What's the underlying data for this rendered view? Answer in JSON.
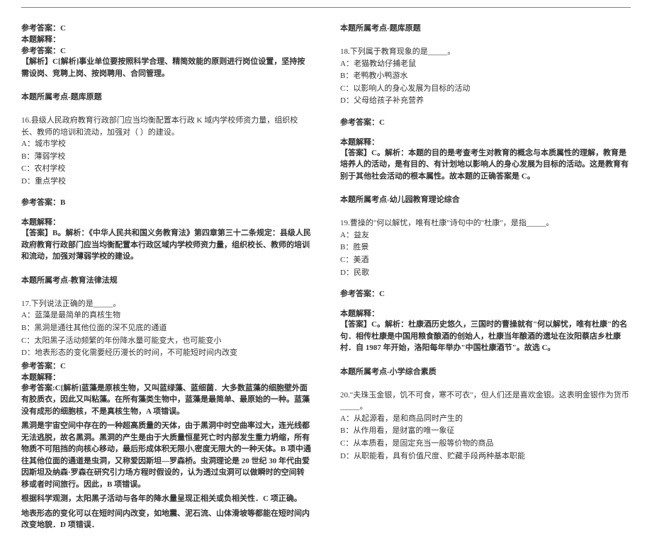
{
  "hr_color": "#808080",
  "left": {
    "ans1_label": "参考答案：C",
    "ans1_explain_label": "本题解释：",
    "ans1_ref": "参考答案：C",
    "ans1_explain": "【解析】C[解析]事业单位要按照科学合理、精简效能的原则进行岗位设置，坚持按需设岗、竞聘上岗、按岗聘用、合同管理。",
    "ans1_topic": "本题所属考点-题库原题",
    "q16_text": "16.县级人民政府教育行政部门应当均衡配置本行政 K 域内学校师资力量，组织校长、教师的培训和流动，加强对（  ）的建设。",
    "q16_a": "A：城市学校",
    "q16_b": "B：薄弱学校",
    "q16_c": "C：农村学校",
    "q16_d": "D：重点学校",
    "q16_ans": "参考答案：B",
    "q16_explain_label": "本题解释：",
    "q16_explain": "【答案】B。解析：《中华人民共和国义务教育法》第四章第三十二条规定：县级人民政府教育行政部门应当均衡配置本行政区域内学校师资力量，组织校长、教师的培训和流动，加强对薄弱学校的建设。",
    "q16_topic": "本题所属考点-教育法律法规",
    "q17_text": "17.下列说法正确的是_____。",
    "q17_a": "A：蓝藻是最简单的真核生物",
    "q17_b": "B：黑洞是通往其他位面的深不见底的通道",
    "q17_c": "C：太阳黑子活动频繁的年份降水量可能变大，也可能变小",
    "q17_d": "D：地表形态的变化需要经历漫长的时间，不可能短时间内改变",
    "q17_ans": "参考答案：C",
    "q17_explain_label": "本题解释：",
    "q17_p1": "参考答案:C[解析]蓝藻是原核生物，又叫蓝绿藻、蓝细菌．大多数蓝藻的细胞壁外面有胶质衣，因此又叫粘藻。在所有藻类生物中，蓝藻是最简单、最原始的一种。蓝藻没有成形的细胞核，不是真核生物，A 项错误。",
    "q17_p2": "黑洞是宇宙空间中存在的一种超高质量的天体，由于黑洞中时空曲率过大，连光线都无法逃脱，故名黑洞。黑洞的产生是由于大质量恒星死亡时内部发生重力坍缩，所有物质不可阻挡的向核心移动，最后形成体积无限小,密度无限大的一种天体。B 项中通往其他位面的通道是虫洞，又称爱因斯坦—罗森桥。虫洞理论是 20 世纪 30 年代由爱因斯坦及纳森·罗森在研究引力场方程时假设的，认为透过虫洞可以做瞬时的空间转移或者时间旅行。因此，B 项错误。",
    "q17_p3": "根据科学观测，太阳黑子活动与各年的降水量呈现正相关或负相关性．C 项正确。",
    "q17_p4": "地表形态的变化可以在短时间内改变，如地震、泥石流、山体滑坡等都能在短时间内改变地貌．D 项错误．"
  },
  "right": {
    "top_topic": "本题所属考点-题库原题",
    "q18_text": "18.下列属于教育现象的是_____。",
    "q18_a": "A：老猫教幼仔捕老鼠",
    "q18_b": "B：老鸭教小鸭游水",
    "q18_c": "C：以影响人的身心发展为目标的活动",
    "q18_d": "D：父母给孩子补充营养",
    "q18_ans": "参考答案：C",
    "q18_explain_label": "本题解释：",
    "q18_explain": "【答案】C。解析：本题的目的是考查考生对教育的概念与本质属性的理解，教育是培养人的活动，是有目的、有计划地以影响人的身心发展为目标的活动。这是教育有别于其他社会活动的根本属性。故本题的正确答案是 C。",
    "q18_topic": "本题所属考点-幼儿园教育理论综合",
    "q19_text": "19.曹操的\"何以解忧，唯有杜康\"诗句中的\"杜康\"，是指_____。",
    "q19_a": "A：益友",
    "q19_b": "B：胜景",
    "q19_c": "C：美酒",
    "q19_d": "D：民歌",
    "q19_ans": "参考答案：C",
    "q19_explain_label": "本题解释：",
    "q19_explain": "【答案】C。解析：杜康酒历史悠久，三国时的曹操就有\"何以解忧，唯有杜康\"的名句．相传杜康是中国用粮食酿酒的创始人，杜康当年酿酒的遗址在汝阳蔡店乡杜康村．自 1987 年开始，洛阳每年举办\"中国杜康酒节\"。故选 C。",
    "q19_topic": "本题所属考点-小学综合素质",
    "q20_text": "20.\"夫珠玉金银，饥不可食，寒不可衣\"，但人们还是喜欢金银。这表明金银作为货币_____。",
    "q20_a": "A：从起源看，是和商品同时产生的",
    "q20_b": "B：从作用看，是财富的唯一象征",
    "q20_c": "C：从本质看，是固定充当一般等价物的商品",
    "q20_d": "D：从职能看，具有价值尺度、贮藏手段两种基本职能"
  }
}
